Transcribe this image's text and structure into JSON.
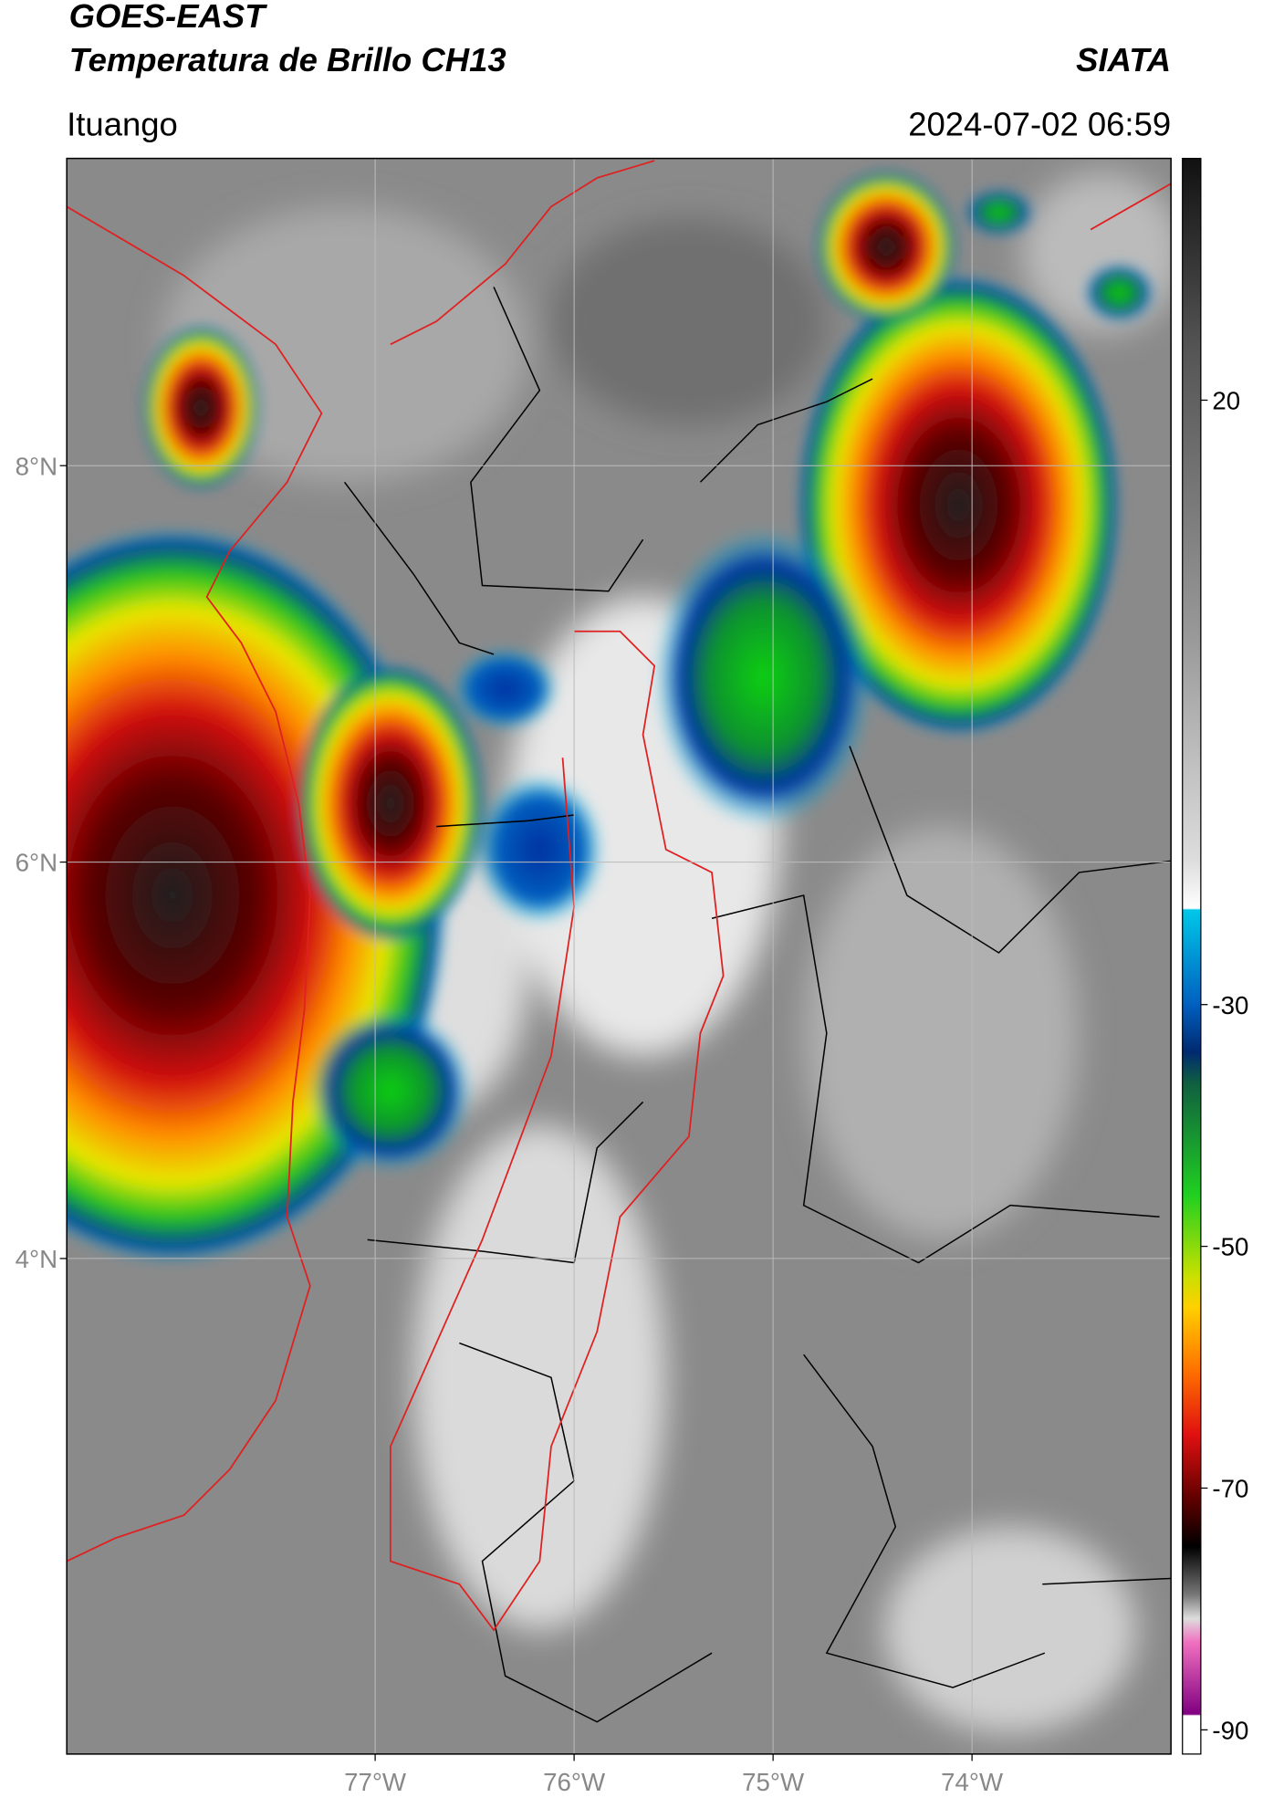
{
  "header": {
    "title": "GOES-EAST",
    "subtitle": "Temperatura de Brillo CH13",
    "brand": "SIATA",
    "location": "Ituango",
    "timestamp": "2024-07-02 06:59"
  },
  "map": {
    "lat_range": [
      1.5,
      9.55
    ],
    "lon_range": [
      -78.55,
      -73
    ],
    "lat_ticks": [
      {
        "value": 8,
        "label": "8°N"
      },
      {
        "value": 6,
        "label": "6°N"
      },
      {
        "value": 4,
        "label": "4°N"
      }
    ],
    "lon_ticks": [
      {
        "value": -77,
        "label": "77°W"
      },
      {
        "value": -76,
        "label": "76°W"
      },
      {
        "value": -75,
        "label": "75°W"
      },
      {
        "value": -74,
        "label": "74°W"
      }
    ]
  },
  "colorbar": {
    "range": [
      -92,
      40
    ],
    "ticks": [
      20,
      -30,
      -50,
      -70,
      -90
    ]
  }
}
